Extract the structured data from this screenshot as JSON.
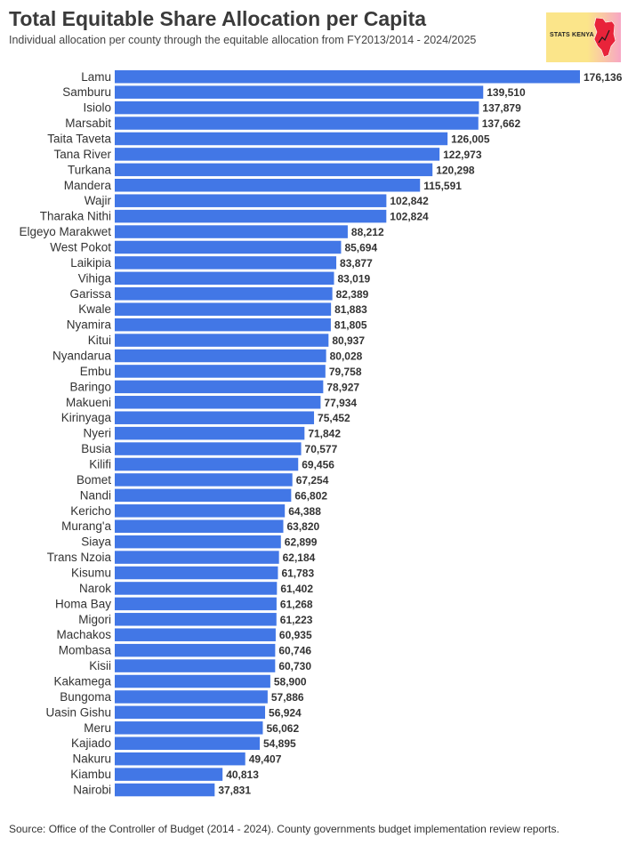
{
  "header": {
    "title": "Total Equitable Share Allocation per Capita",
    "subtitle": "Individual allocation per county through the equitable allocation from FY2013/2014 - 2024/2025"
  },
  "logo": {
    "text": "STATS KENYA"
  },
  "footer": {
    "source": "Source: Office of the Controller of Budget (2014 - 2024). County governments budget implementation review reports."
  },
  "colors": {
    "bar": "#4277e6",
    "logo_map": "#e8233a"
  },
  "chart_data": {
    "type": "bar",
    "orientation": "horizontal",
    "title": "Total Equitable Share Allocation per Capita",
    "xlabel": "",
    "ylabel": "",
    "xlim": [
      0,
      176136
    ],
    "categories": [
      "Lamu",
      "Samburu",
      "Isiolo",
      "Marsabit",
      "Taita Taveta",
      "Tana River",
      "Turkana",
      "Mandera",
      "Wajir",
      "Tharaka Nithi",
      "Elgeyo Marakwet",
      "West Pokot",
      "Laikipia",
      "Vihiga",
      "Garissa",
      "Kwale",
      "Nyamira",
      "Kitui",
      "Nyandarua",
      "Embu",
      "Baringo",
      "Makueni",
      "Kirinyaga",
      "Nyeri",
      "Busia",
      "Kilifi",
      "Bomet",
      "Nandi",
      "Kericho",
      "Murang'a",
      "Siaya",
      "Trans Nzoia",
      "Kisumu",
      "Narok",
      "Homa Bay",
      "Migori",
      "Machakos",
      "Mombasa",
      "Kisii",
      "Kakamega",
      "Bungoma",
      "Uasin Gishu",
      "Meru",
      "Kajiado",
      "Nakuru",
      "Kiambu",
      "Nairobi"
    ],
    "values": [
      176136,
      139510,
      137879,
      137662,
      126005,
      122973,
      120298,
      115591,
      102842,
      102824,
      88212,
      85694,
      83877,
      83019,
      82389,
      81883,
      81805,
      80937,
      80028,
      79758,
      78927,
      77934,
      75452,
      71842,
      70577,
      69456,
      67254,
      66802,
      64388,
      63820,
      62899,
      62184,
      61783,
      61402,
      61268,
      61223,
      60935,
      60746,
      60730,
      58900,
      57886,
      56924,
      56062,
      54895,
      49407,
      40813,
      37831
    ],
    "value_labels": [
      "176,136",
      "139,510",
      "137,879",
      "137,662",
      "126,005",
      "122,973",
      "120,298",
      "115,591",
      "102,842",
      "102,824",
      "88,212",
      "85,694",
      "83,877",
      "83,019",
      "82,389",
      "81,883",
      "81,805",
      "80,937",
      "80,028",
      "79,758",
      "78,927",
      "77,934",
      "75,452",
      "71,842",
      "70,577",
      "69,456",
      "67,254",
      "66,802",
      "64,388",
      "63,820",
      "62,899",
      "62,184",
      "61,783",
      "61,402",
      "61,268",
      "61,223",
      "60,935",
      "60,746",
      "60,730",
      "58,900",
      "57,886",
      "56,924",
      "56,062",
      "54,895",
      "49,407",
      "40,813",
      "37,831"
    ],
    "grid": false,
    "legend": "none"
  }
}
